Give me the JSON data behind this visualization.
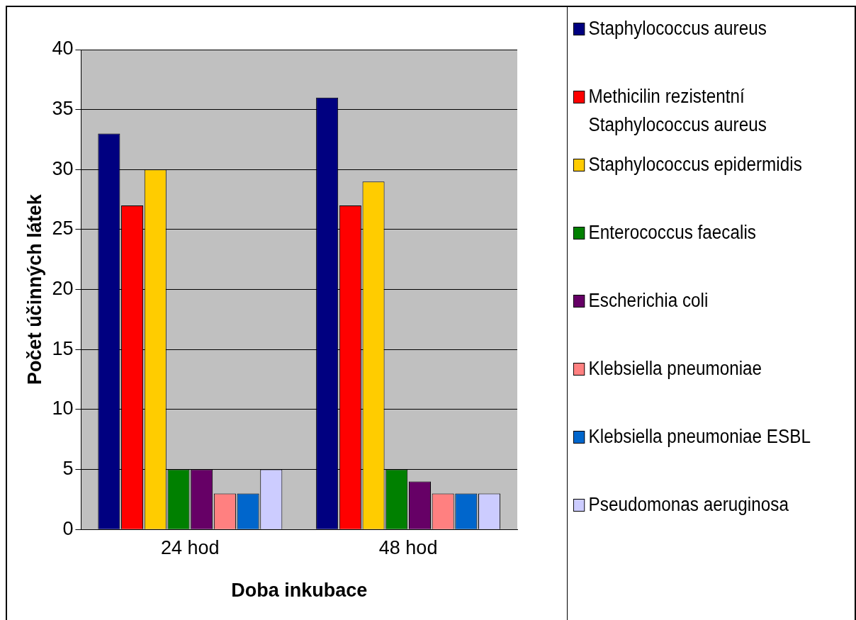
{
  "chart_data": {
    "type": "bar",
    "xlabel": "Doba inkubace",
    "ylabel": "Počet účinných látek",
    "categories": [
      "24 hod",
      "48 hod"
    ],
    "series": [
      {
        "name": "Staphylococcus aureus",
        "color": "#000080",
        "values": [
          33,
          36
        ]
      },
      {
        "name": "Methicilin rezistentní Staphylococcus aureus",
        "color": "#ff0000",
        "values": [
          27,
          27
        ]
      },
      {
        "name": "Staphylococcus epidermidis",
        "color": "#ffcc00",
        "values": [
          30,
          29
        ]
      },
      {
        "name": "Enterococcus faecalis",
        "color": "#008000",
        "values": [
          5,
          5
        ]
      },
      {
        "name": "Escherichia coli",
        "color": "#660066",
        "values": [
          5,
          4
        ]
      },
      {
        "name": "Klebsiella pneumoniae",
        "color": "#ff8080",
        "values": [
          3,
          3
        ]
      },
      {
        "name": "Klebsiella pneumoniae ESBL",
        "color": "#0066cc",
        "values": [
          3,
          3
        ]
      },
      {
        "name": "Pseudomonas aeruginosa",
        "color": "#ccccff",
        "values": [
          5,
          3
        ]
      }
    ],
    "ylim": [
      0,
      40
    ],
    "yticks": [
      0,
      5,
      10,
      15,
      20,
      25,
      30,
      35,
      40
    ],
    "grid": "y",
    "legend": "right"
  }
}
